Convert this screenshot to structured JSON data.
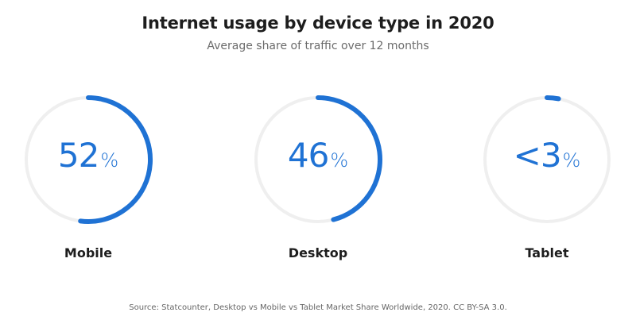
{
  "title": "Internet usage by device type in 2020",
  "subtitle": "Average share of traffic over 12 months",
  "source": "Source: Statcounter, Desktop vs Mobile vs Tablet Market Share Worldwide, 2020. CC BY-SA 3.0.",
  "colors": {
    "accent": "#1f72d4",
    "track": "#efefef"
  },
  "chart_data": {
    "type": "pie",
    "style": "radial-progress",
    "unit": "%",
    "categories": [
      "Mobile",
      "Desktop",
      "Tablet"
    ],
    "values": [
      52,
      46,
      3
    ],
    "display_values": [
      "52",
      "46",
      "<3"
    ]
  }
}
